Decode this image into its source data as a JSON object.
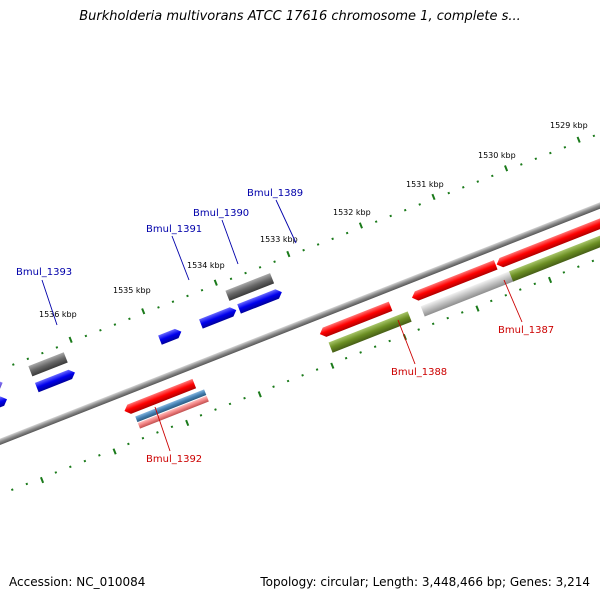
{
  "title": "Burkholderia multivorans ATCC 17616 chromosome 1, complete s...",
  "footer": {
    "accession": "Accession: NC_010084",
    "stats": "Topology: circular; Length: 3,448,466 bp; Genes: 3,214"
  },
  "colors": {
    "forward_label": "#0000aa",
    "reverse_label": "#cc0000",
    "tick": "#1a7a1a",
    "backbone": "#8a8a8a",
    "red_gene": "#ff0000",
    "blue_gene": "#0000ee",
    "gray_gene": "#666666",
    "olive_gene": "#6b8e23",
    "steelblue_gene": "#4682b4",
    "pink_gene": "#f08080",
    "lightgray_gene": "#c0c0c0",
    "slate_gene": "#7b68ee"
  },
  "kbp_labels": [
    "1529 kbp",
    "1530 kbp",
    "1531 kbp",
    "1532 kbp",
    "1533 kbp",
    "1534 kbp",
    "1535 kbp",
    "1536 kbp"
  ],
  "gene_labels": {
    "forward": [
      "Bmul_1389",
      "Bmul_1390",
      "Bmul_1391",
      "Bmul_1393"
    ],
    "reverse": [
      "Bmul_1387",
      "Bmul_1388",
      "Bmul_1392"
    ]
  }
}
